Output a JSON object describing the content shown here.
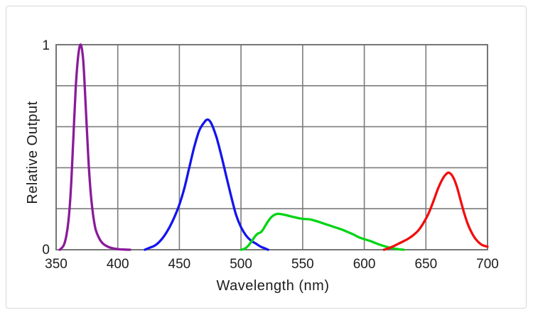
{
  "panel": {
    "background": "#ffffff",
    "border_color": "#d7d7d7"
  },
  "chart_data": {
    "type": "line",
    "title": "",
    "xlabel": "Wavelength (nm)",
    "ylabel": "Relative Output",
    "xlim": [
      350,
      700
    ],
    "ylim": [
      0,
      1
    ],
    "x_ticks": [
      350,
      400,
      450,
      500,
      550,
      600,
      650,
      700
    ],
    "y_ticks_labeled": [
      {
        "value": 1,
        "label": "1"
      },
      {
        "value": 0,
        "label": "0"
      }
    ],
    "y_gridline_step": 0.2,
    "grid": true,
    "legend": "none",
    "grid_color": "#7b7b7b",
    "frame_color": "#6f6f6f",
    "series": [
      {
        "name": "purple",
        "color": "#8B1A9B",
        "peak_nm": 370,
        "peak_value": 1.0,
        "points": [
          [
            353,
            0
          ],
          [
            356,
            0.02
          ],
          [
            358,
            0.06
          ],
          [
            360,
            0.14
          ],
          [
            362,
            0.3
          ],
          [
            364,
            0.55
          ],
          [
            366,
            0.8
          ],
          [
            368,
            0.95
          ],
          [
            370,
            1.0
          ],
          [
            372,
            0.92
          ],
          [
            374,
            0.7
          ],
          [
            376,
            0.46
          ],
          [
            378,
            0.28
          ],
          [
            380,
            0.17
          ],
          [
            382,
            0.1
          ],
          [
            385,
            0.055
          ],
          [
            388,
            0.03
          ],
          [
            392,
            0.015
          ],
          [
            396,
            0.007
          ],
          [
            400,
            0.003
          ],
          [
            405,
            0.001
          ],
          [
            410,
            0
          ]
        ]
      },
      {
        "name": "blue",
        "color": "#1414EE",
        "peak_nm": 473,
        "peak_value": 0.63,
        "points": [
          [
            422,
            0
          ],
          [
            426,
            0.01
          ],
          [
            430,
            0.02
          ],
          [
            434,
            0.04
          ],
          [
            438,
            0.07
          ],
          [
            442,
            0.11
          ],
          [
            446,
            0.16
          ],
          [
            450,
            0.22
          ],
          [
            454,
            0.3
          ],
          [
            458,
            0.4
          ],
          [
            462,
            0.5
          ],
          [
            466,
            0.58
          ],
          [
            470,
            0.62
          ],
          [
            473,
            0.635
          ],
          [
            476,
            0.615
          ],
          [
            480,
            0.55
          ],
          [
            484,
            0.46
          ],
          [
            488,
            0.36
          ],
          [
            492,
            0.26
          ],
          [
            496,
            0.17
          ],
          [
            500,
            0.11
          ],
          [
            504,
            0.07
          ],
          [
            508,
            0.045
          ],
          [
            512,
            0.03
          ],
          [
            516,
            0.015
          ],
          [
            520,
            0.005
          ],
          [
            522,
            0
          ]
        ]
      },
      {
        "name": "green",
        "color": "#00D414",
        "peak_nm": 530,
        "peak_value": 0.175,
        "points": [
          [
            500,
            0
          ],
          [
            503,
            0.005
          ],
          [
            506,
            0.02
          ],
          [
            509,
            0.045
          ],
          [
            512,
            0.07
          ],
          [
            514,
            0.08
          ],
          [
            516,
            0.085
          ],
          [
            518,
            0.1
          ],
          [
            521,
            0.13
          ],
          [
            524,
            0.155
          ],
          [
            527,
            0.17
          ],
          [
            530,
            0.175
          ],
          [
            533,
            0.173
          ],
          [
            537,
            0.168
          ],
          [
            541,
            0.162
          ],
          [
            546,
            0.155
          ],
          [
            551,
            0.15
          ],
          [
            556,
            0.148
          ],
          [
            561,
            0.14
          ],
          [
            566,
            0.13
          ],
          [
            571,
            0.12
          ],
          [
            576,
            0.11
          ],
          [
            581,
            0.1
          ],
          [
            586,
            0.088
          ],
          [
            591,
            0.075
          ],
          [
            596,
            0.06
          ],
          [
            601,
            0.05
          ],
          [
            606,
            0.04
          ],
          [
            611,
            0.028
          ],
          [
            616,
            0.018
          ],
          [
            620,
            0.011
          ],
          [
            624,
            0.006
          ],
          [
            628,
            0.002
          ],
          [
            632,
            0
          ]
        ]
      },
      {
        "name": "red",
        "color": "#F20D0D",
        "peak_nm": 668,
        "peak_value": 0.375,
        "points": [
          [
            616,
            0
          ],
          [
            620,
            0.008
          ],
          [
            624,
            0.018
          ],
          [
            628,
            0.03
          ],
          [
            632,
            0.042
          ],
          [
            636,
            0.055
          ],
          [
            640,
            0.072
          ],
          [
            644,
            0.095
          ],
          [
            648,
            0.13
          ],
          [
            652,
            0.175
          ],
          [
            656,
            0.235
          ],
          [
            660,
            0.3
          ],
          [
            664,
            0.35
          ],
          [
            667,
            0.372
          ],
          [
            669,
            0.375
          ],
          [
            672,
            0.355
          ],
          [
            675,
            0.31
          ],
          [
            678,
            0.245
          ],
          [
            681,
            0.18
          ],
          [
            684,
            0.125
          ],
          [
            687,
            0.085
          ],
          [
            690,
            0.055
          ],
          [
            693,
            0.035
          ],
          [
            696,
            0.022
          ],
          [
            700,
            0.015
          ]
        ]
      }
    ]
  }
}
